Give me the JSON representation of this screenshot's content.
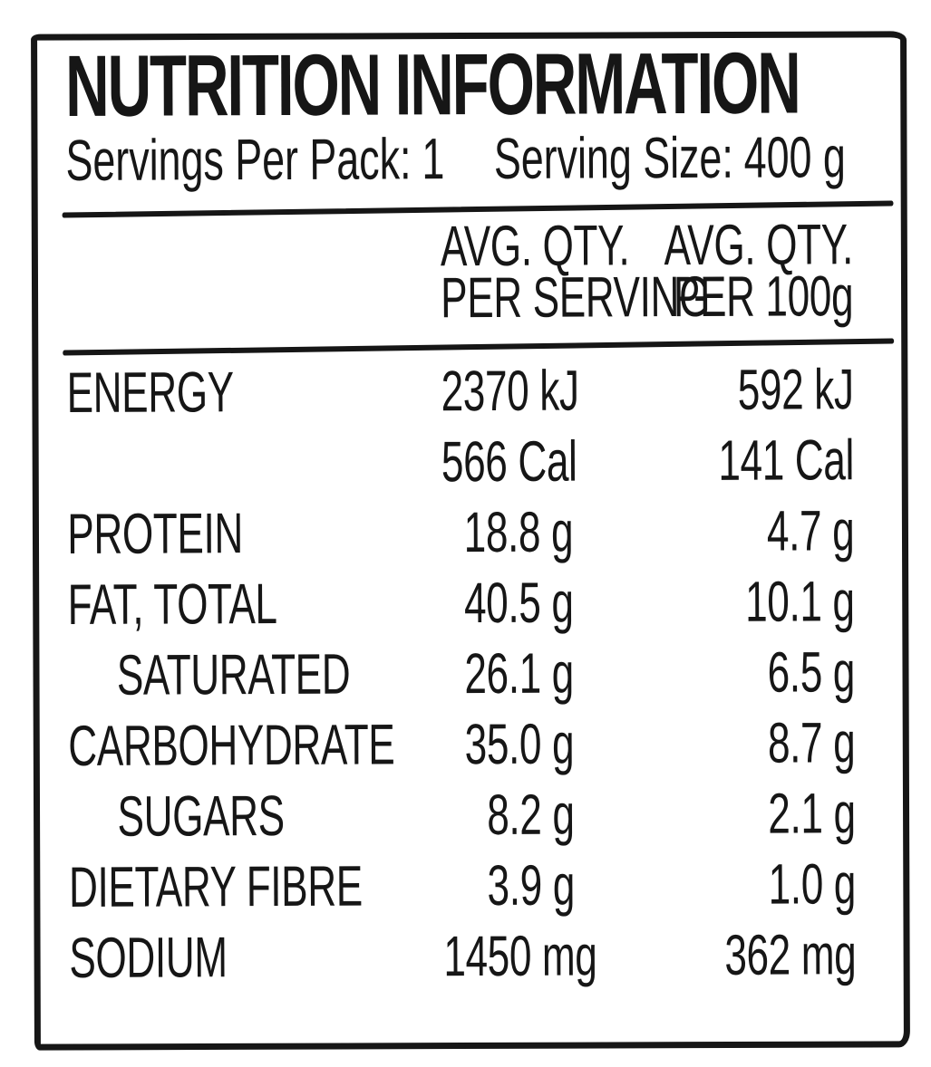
{
  "label": {
    "title": "NUTRITION INFORMATION",
    "servings_per_pack_label": "Servings Per Pack:",
    "servings_per_pack_value": "1",
    "serving_size_label": "Serving Size:",
    "serving_size_value": "400 g",
    "columns": [
      {
        "line1": "AVG. QTY.",
        "line2": "PER SERVING"
      },
      {
        "line1": "AVG. QTY.",
        "line2": "PER 100g"
      }
    ],
    "rows": [
      {
        "name": "ENERGY",
        "per_serving": "2370 kJ",
        "per_100g": "592 kJ"
      },
      {
        "name": "",
        "per_serving": "566 Cal",
        "per_100g": "141 Cal"
      },
      {
        "name": "PROTEIN",
        "per_serving": "18.8 g",
        "per_100g": "4.7 g"
      },
      {
        "name": "FAT, TOTAL",
        "per_serving": "40.5 g",
        "per_100g": "10.1 g"
      },
      {
        "name": "SATURATED",
        "per_serving": "26.1 g",
        "per_100g": "6.5 g"
      },
      {
        "name": "CARBOHYDRATE",
        "per_serving": "35.0 g",
        "per_100g": "8.7 g"
      },
      {
        "name": "SUGARS",
        "per_serving": "8.2 g",
        "per_100g": "2.1 g"
      },
      {
        "name": "DIETARY FIBRE",
        "per_serving": "3.9 g",
        "per_100g": "1.0 g"
      },
      {
        "name": "SODIUM",
        "per_serving": "1450 mg",
        "per_100g": "362 mg"
      }
    ],
    "colors": {
      "ink": "#161616",
      "background": "#ffffff"
    }
  }
}
